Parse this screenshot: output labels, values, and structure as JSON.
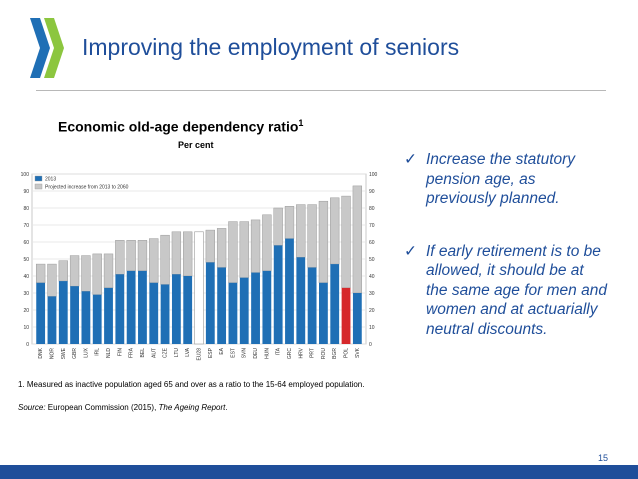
{
  "slide": {
    "title": "Improving the employment of seniors",
    "page_number": "15",
    "footnote": "1.   Measured as inactive population aged 65 and over as a ratio to the 15-64 employed population.",
    "source_label": "Source:",
    "source_text": " European Commission (2015), ",
    "source_report": "The Ageing Report",
    "source_end": "."
  },
  "chart_header": {
    "title": "Economic old-age dependency ratio",
    "title_sup": "1",
    "subtitle": "Per cent"
  },
  "bullets": [
    {
      "icon": "check-icon",
      "text": "Increase the statutory pension age, as previously planned."
    },
    {
      "icon": "check-icon",
      "text": "If early retirement is to be allowed, it should be at the same age for men and women and at actuarially neutral discounts."
    }
  ],
  "colors": {
    "brand_blue": "#1f4e9a",
    "bar_2013": "#1f6fb5",
    "bar_increase": "#c8c8c8",
    "highlight": "#d6282b",
    "logo_green": "#8cc63f",
    "logo_blue": "#1f6fb5"
  },
  "chart_data": {
    "type": "bar",
    "categories": [
      "DNK",
      "NOR",
      "SWE",
      "GBR",
      "LUX",
      "IRL",
      "NLD",
      "FIN",
      "FRA",
      "BEL",
      "AUT",
      "CZE",
      "LTU",
      "LVA",
      "EU28",
      "ESP",
      "EA",
      "EST",
      "SVN",
      "DEU",
      "HUN",
      "ITA",
      "GRC",
      "HRV",
      "PRT",
      "ROU",
      "BGR",
      "POL",
      "SVK"
    ],
    "series": [
      {
        "name": "2013",
        "values": [
          36,
          28,
          37,
          34,
          31,
          29,
          33,
          41,
          43,
          43,
          36,
          35,
          41,
          40,
          null,
          48,
          45,
          36,
          39,
          42,
          43,
          58,
          62,
          51,
          45,
          36,
          47,
          33,
          30
        ]
      },
      {
        "name": "Projected increase from 2013 to 2060",
        "values": [
          11,
          19,
          12,
          18,
          21,
          24,
          20,
          20,
          18,
          18,
          26,
          29,
          25,
          26,
          null,
          19,
          23,
          36,
          33,
          31,
          33,
          22,
          19,
          31,
          37,
          48,
          39,
          54,
          63
        ]
      }
    ],
    "eu28_total": 66,
    "highlight_category": "POL",
    "ylim": [
      0,
      100
    ],
    "yticks": [
      0,
      10,
      20,
      30,
      40,
      50,
      60,
      70,
      80,
      90,
      100
    ],
    "grid": true,
    "legend_position": "top-left"
  }
}
